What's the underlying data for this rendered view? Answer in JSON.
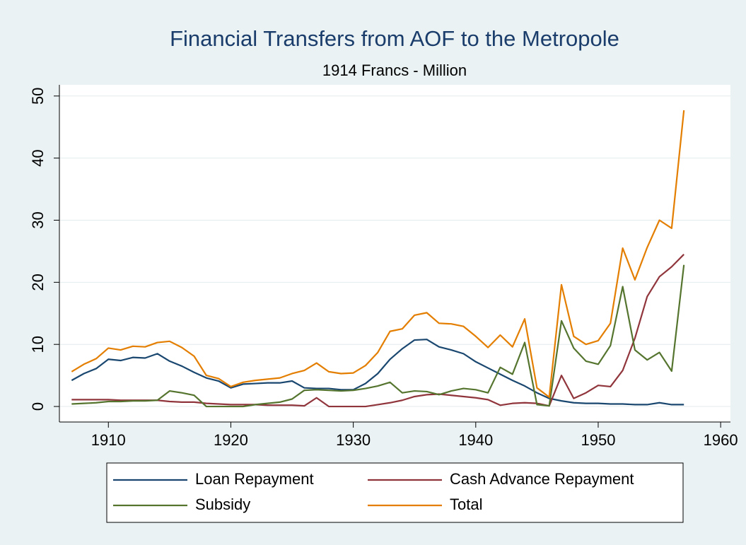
{
  "chart_data": {
    "type": "line",
    "title": "Financial Transfers from AOF to the Metropole",
    "subtitle": "1914 Francs - Million",
    "x": [
      1907,
      1908,
      1909,
      1910,
      1911,
      1912,
      1913,
      1914,
      1915,
      1916,
      1917,
      1918,
      1919,
      1920,
      1921,
      1922,
      1923,
      1924,
      1925,
      1926,
      1927,
      1928,
      1929,
      1930,
      1931,
      1932,
      1933,
      1934,
      1935,
      1936,
      1937,
      1938,
      1939,
      1940,
      1941,
      1942,
      1943,
      1944,
      1945,
      1946,
      1947,
      1948,
      1949,
      1950,
      1951,
      1952,
      1953,
      1954,
      1955,
      1956,
      1957
    ],
    "series": [
      {
        "name": "Loan Repayment",
        "color": "#1a476f",
        "values": [
          4.2,
          5.3,
          6.1,
          7.6,
          7.4,
          7.9,
          7.8,
          8.5,
          7.3,
          6.5,
          5.5,
          4.6,
          4.1,
          3.0,
          3.6,
          3.7,
          3.8,
          3.8,
          4.1,
          3.0,
          2.9,
          2.9,
          2.7,
          2.7,
          3.7,
          5.3,
          7.6,
          9.3,
          10.7,
          10.8,
          9.6,
          9.1,
          8.5,
          7.2,
          6.2,
          5.2,
          4.2,
          3.3,
          2.2,
          1.3,
          0.9,
          0.6,
          0.5,
          0.5,
          0.4,
          0.4,
          0.3,
          0.3,
          0.6,
          0.3,
          0.3
        ]
      },
      {
        "name": "Cash Advance Repayment",
        "color": "#90353b",
        "values": [
          1.1,
          1.1,
          1.1,
          1.1,
          1.0,
          1.0,
          1.0,
          1.0,
          0.8,
          0.7,
          0.7,
          0.5,
          0.4,
          0.3,
          0.3,
          0.3,
          0.2,
          0.2,
          0.2,
          0.1,
          1.4,
          0,
          0,
          0,
          0,
          0.3,
          0.6,
          1.0,
          1.6,
          1.9,
          2.0,
          1.8,
          1.6,
          1.4,
          1.1,
          0.2,
          0.5,
          0.6,
          0.5,
          0.1,
          5.0,
          1.3,
          2.2,
          3.4,
          3.2,
          5.8,
          11.0,
          17.7,
          20.9,
          22.5,
          24.5
        ]
      },
      {
        "name": "Subsidy",
        "color": "#55752f",
        "values": [
          0.4,
          0.5,
          0.6,
          0.8,
          0.8,
          0.9,
          0.9,
          1.0,
          2.5,
          2.2,
          1.8,
          0.0,
          0.0,
          0.0,
          0.0,
          0.3,
          0.5,
          0.7,
          1.2,
          2.6,
          2.7,
          2.6,
          2.5,
          2.6,
          2.9,
          3.3,
          3.9,
          2.2,
          2.5,
          2.4,
          1.9,
          2.5,
          2.9,
          2.7,
          2.2,
          6.3,
          5.2,
          10.3,
          0.3,
          0.1,
          13.8,
          9.4,
          7.3,
          6.8,
          9.8,
          19.3,
          9.1,
          7.5,
          8.7,
          5.7,
          22.8
        ]
      },
      {
        "name": "Total",
        "color": "#e37e00",
        "values": [
          5.6,
          6.8,
          7.7,
          9.4,
          9.1,
          9.7,
          9.6,
          10.3,
          10.5,
          9.5,
          8.1,
          5.0,
          4.5,
          3.2,
          3.9,
          4.2,
          4.4,
          4.6,
          5.3,
          5.8,
          7.0,
          5.6,
          5.3,
          5.4,
          6.6,
          8.7,
          12.1,
          12.5,
          14.7,
          15.1,
          13.4,
          13.3,
          12.9,
          11.3,
          9.5,
          11.5,
          9.6,
          14.1,
          3.0,
          1.5,
          19.6,
          11.3,
          10.0,
          10.6,
          13.4,
          25.5,
          20.4,
          25.6,
          30.0,
          28.7,
          47.7
        ]
      }
    ],
    "xlim": [
      1906,
      1960.8
    ],
    "xticks": [
      1910,
      1920,
      1930,
      1940,
      1950,
      1960
    ],
    "ylim": [
      -2.5,
      51.8
    ],
    "yticks": [
      0,
      10,
      20,
      30,
      40,
      50
    ],
    "grid": true,
    "legend": "bottom"
  }
}
